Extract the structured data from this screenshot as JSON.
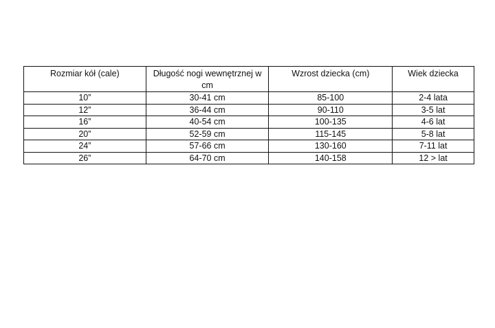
{
  "table": {
    "headers": [
      "Rozmiar kół (cale)",
      "Długość nogi wewnętrznej w cm",
      "Wzrost dziecka (cm)",
      "Wiek dziecka"
    ],
    "rows": [
      [
        "10”",
        "30-41 cm",
        "85-100",
        "2-4 lata"
      ],
      [
        "12”",
        "36-44 cm",
        "90-110",
        "3-5 lat"
      ],
      [
        "16”",
        "40-54 cm",
        "100-135",
        "4-6 lat"
      ],
      [
        "20”",
        "52-59 cm",
        "115-145",
        "5-8 lat"
      ],
      [
        "24”",
        "57-66 cm",
        "130-160",
        "7-11 lat"
      ],
      [
        "26”",
        "64-70 cm",
        "140-158",
        "12 > lat"
      ]
    ]
  }
}
